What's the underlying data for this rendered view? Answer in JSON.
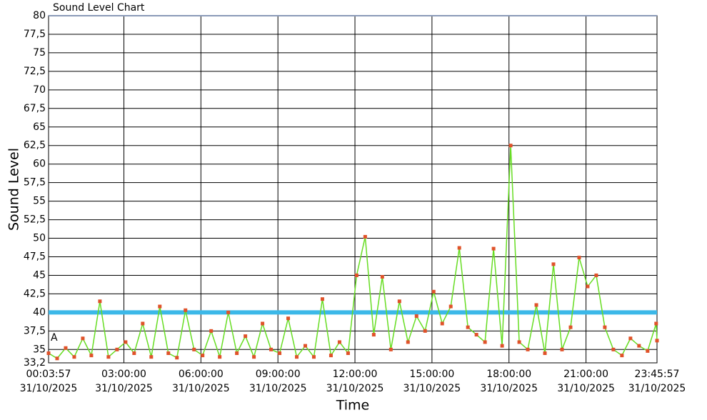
{
  "chart_data": {
    "type": "line",
    "title": "Sound Level Chart",
    "y_label": "Sound Level",
    "x_label": "Time",
    "date": "31/10/2025",
    "x": [
      "00:03:57",
      "00:23:57",
      "00:43:57",
      "01:03:57",
      "01:23:57",
      "01:43:57",
      "02:03:57",
      "02:23:57",
      "02:43:57",
      "03:03:57",
      "03:23:57",
      "03:43:57",
      "04:03:57",
      "04:23:57",
      "04:43:57",
      "05:03:57",
      "05:23:57",
      "05:43:57",
      "06:03:57",
      "06:23:57",
      "06:43:57",
      "07:03:57",
      "07:23:57",
      "07:43:57",
      "08:03:57",
      "08:23:57",
      "08:43:57",
      "09:03:57",
      "09:23:57",
      "09:43:57",
      "10:03:57",
      "10:23:57",
      "10:43:57",
      "11:03:57",
      "11:23:57",
      "11:43:57",
      "12:03:57",
      "12:23:57",
      "12:43:57",
      "13:03:57",
      "13:23:57",
      "13:43:57",
      "14:03:57",
      "14:23:57",
      "14:43:57",
      "15:03:57",
      "15:23:57",
      "15:43:57",
      "16:03:57",
      "16:23:57",
      "16:43:57",
      "17:03:57",
      "17:23:57",
      "17:43:57",
      "18:03:57",
      "18:23:57",
      "18:43:57",
      "19:03:57",
      "19:23:57",
      "19:43:57",
      "20:03:57",
      "20:23:57",
      "20:43:57",
      "21:03:57",
      "21:23:57",
      "21:43:57",
      "22:03:57",
      "22:23:57",
      "22:43:57",
      "23:03:57",
      "23:23:57",
      "23:43:57",
      "23:45:57"
    ],
    "series": [
      {
        "color": "#66dd22",
        "marker_color": "#e0522a",
        "values": [
          34.5,
          33.8,
          35.2,
          34,
          36.5,
          34.2,
          41.5,
          34,
          35,
          36,
          34.5,
          38.5,
          34,
          40.8,
          34.5,
          33.9,
          40.3,
          35,
          34.2,
          37.5,
          34,
          40,
          34.5,
          36.8,
          34,
          38.5,
          35,
          34.5,
          39.2,
          34,
          35.5,
          34,
          41.8,
          34.2,
          36,
          34.5,
          45,
          50.2,
          37,
          44.8,
          35,
          41.5,
          36,
          39.5,
          37.5,
          42.8,
          38.5,
          40.8,
          48.7,
          38,
          37,
          36,
          48.6,
          35.5,
          62.5,
          36,
          35,
          41,
          34.5,
          46.5,
          35,
          38,
          47.4,
          43.5,
          45,
          38,
          35,
          34.2,
          36.5,
          35.5,
          34.8,
          38.5,
          36.2
        ]
      }
    ],
    "threshold": 40,
    "threshold_color": "#3cb8e8",
    "threshold_label": "A",
    "xlim": [
      "00:03:57",
      "23:45:57"
    ],
    "xticks": [
      "00:03:57",
      "03:00:00",
      "06:00:00",
      "09:00:00",
      "12:00:00",
      "15:00:00",
      "18:00:00",
      "21:00:00",
      "23:45:57"
    ],
    "ylim": [
      33.2,
      80
    ],
    "yticks": [
      {
        "value": 33.2,
        "label": "33,2"
      },
      35,
      {
        "value": 37.5,
        "label": "37,5"
      },
      40,
      {
        "value": 42.5,
        "label": "42,5"
      },
      45,
      {
        "value": 47.5,
        "label": "47,5"
      },
      50,
      {
        "value": 52.5,
        "label": "52,5"
      },
      55,
      {
        "value": 57.5,
        "label": "57,5"
      },
      60,
      {
        "value": 62.5,
        "label": "62,5"
      },
      65,
      {
        "value": 67.5,
        "label": "67,5"
      },
      70,
      {
        "value": 72.5,
        "label": "72,5"
      },
      75,
      {
        "value": 77.5,
        "label": "77,5"
      },
      80
    ],
    "grid": true
  }
}
